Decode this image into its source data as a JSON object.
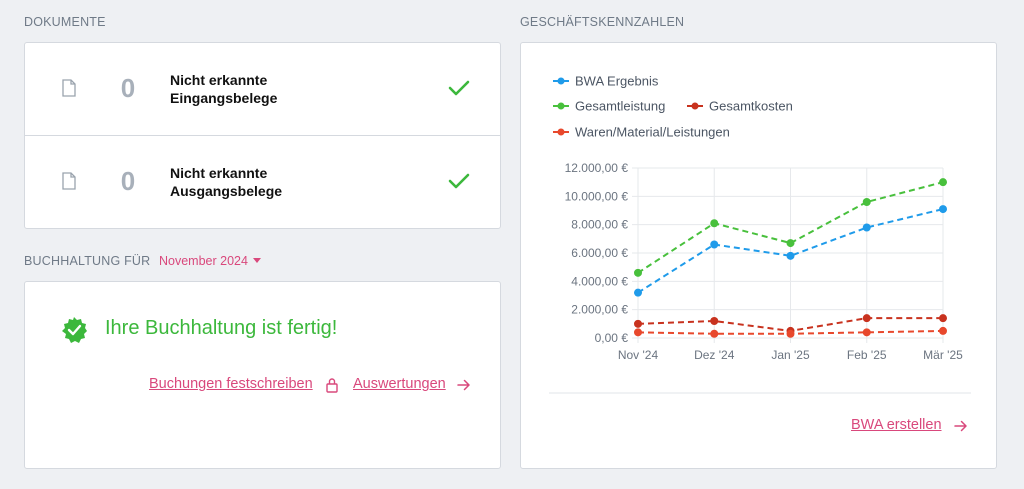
{
  "documents": {
    "section_title": "DOKUMENTE",
    "items": [
      {
        "icon": "document-icon",
        "count": "0",
        "label_line1": "Nicht erkannte",
        "label_line2": "Eingangsbelege",
        "status_icon": "check-icon"
      },
      {
        "icon": "document-icon",
        "count": "0",
        "label_line1": "Nicht erkannte",
        "label_line2": "Ausgangsbelege",
        "status_icon": "check-icon"
      }
    ]
  },
  "bookkeeping": {
    "section_title": "BUCHHALTUNG FÜR",
    "month": "November 2024",
    "status_text": "Ihre Buchhaltung ist fertig!",
    "link_lock": "Buchungen festschreiben",
    "link_reports": "Auswertungen"
  },
  "kpis": {
    "section_title": "GESCHÄFTSKENNZAHLEN",
    "bwa_link": "BWA erstellen"
  },
  "colors": {
    "accent": "#d9487c",
    "success": "#3cb83c",
    "bwa": "#1f9bea",
    "gesamtleistung": "#48c03c",
    "gesamtkosten": "#c8321e",
    "waren": "#e8482c"
  },
  "chart_data": {
    "type": "line",
    "categories": [
      "Nov '24",
      "Dez '24",
      "Jan '25",
      "Feb '25",
      "Mär '25"
    ],
    "series": [
      {
        "name": "BWA Ergebnis",
        "values": [
          3200,
          6600,
          5800,
          7800,
          9100
        ]
      },
      {
        "name": "Gesamtleistung",
        "values": [
          4600,
          8100,
          6700,
          9600,
          11000
        ]
      },
      {
        "name": "Gesamtkosten",
        "values": [
          1000,
          1200,
          500,
          1400,
          1400
        ]
      },
      {
        "name": "Waren/Material/Leistungen",
        "values": [
          400,
          300,
          300,
          400,
          500
        ]
      }
    ],
    "ylim": [
      0,
      12000
    ],
    "yticks": [
      "0,00 €",
      "2.000,00 €",
      "4.000,00 €",
      "6.000,00 €",
      "8.000,00 €",
      "10.000,00 €",
      "12.000,00 €"
    ],
    "ytick_values": [
      0,
      2000,
      4000,
      6000,
      8000,
      10000,
      12000
    ],
    "grid": true,
    "legend_position": "top-left"
  }
}
